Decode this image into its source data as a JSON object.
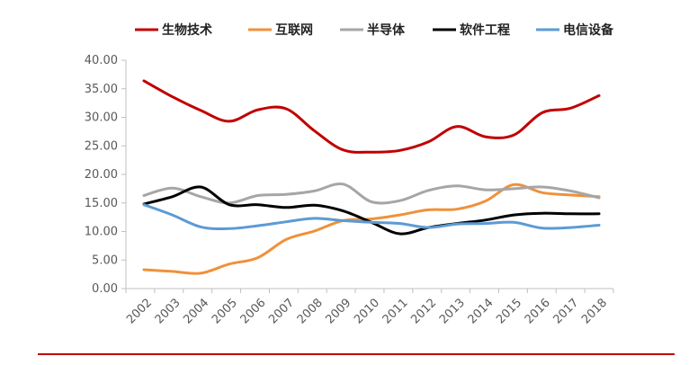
{
  "chart_data": {
    "type": "line",
    "title": "",
    "xlabel": "",
    "ylabel": "",
    "x": [
      "2002",
      "2003",
      "2004",
      "2005",
      "2006",
      "2007",
      "2008",
      "2009",
      "2010",
      "2011",
      "2012",
      "2013",
      "2014",
      "2015",
      "2016",
      "2017",
      "2018"
    ],
    "y_ticks": [
      "0.00",
      "5.00",
      "10.00",
      "15.00",
      "20.00",
      "25.00",
      "30.00",
      "35.00",
      "40.00"
    ],
    "ylim": [
      0,
      40
    ],
    "grid": false,
    "legend_position": "top",
    "series": [
      {
        "name": "生物技术",
        "color": "#c00000",
        "values": [
          36.4,
          33.6,
          31.2,
          29.3,
          31.3,
          31.5,
          27.6,
          24.3,
          23.9,
          24.2,
          25.7,
          28.4,
          26.6,
          26.9,
          30.8,
          31.6,
          33.8
        ]
      },
      {
        "name": "互联网",
        "color": "#f0913a",
        "values": [
          3.3,
          3.0,
          2.7,
          4.3,
          5.4,
          8.6,
          10.1,
          11.9,
          12.2,
          12.9,
          13.8,
          13.9,
          15.3,
          18.2,
          16.8,
          16.4,
          16.1
        ]
      },
      {
        "name": "半导体",
        "color": "#a6a6a6",
        "values": [
          16.3,
          17.6,
          16.1,
          15.0,
          16.3,
          16.5,
          17.1,
          18.3,
          15.2,
          15.4,
          17.2,
          18.0,
          17.3,
          17.5,
          17.8,
          17.1,
          15.9
        ]
      },
      {
        "name": "软件工程",
        "color": "#000000",
        "values": [
          14.8,
          16.1,
          17.8,
          14.7,
          14.7,
          14.2,
          14.6,
          13.6,
          11.6,
          9.6,
          10.7,
          11.4,
          12.0,
          12.9,
          13.2,
          13.1,
          13.1
        ]
      },
      {
        "name": "电信设备",
        "color": "#5b9bd5",
        "values": [
          14.7,
          12.9,
          10.8,
          10.5,
          11.0,
          11.7,
          12.3,
          11.9,
          11.6,
          11.4,
          10.7,
          11.3,
          11.4,
          11.6,
          10.6,
          10.7,
          11.1
        ]
      }
    ]
  }
}
